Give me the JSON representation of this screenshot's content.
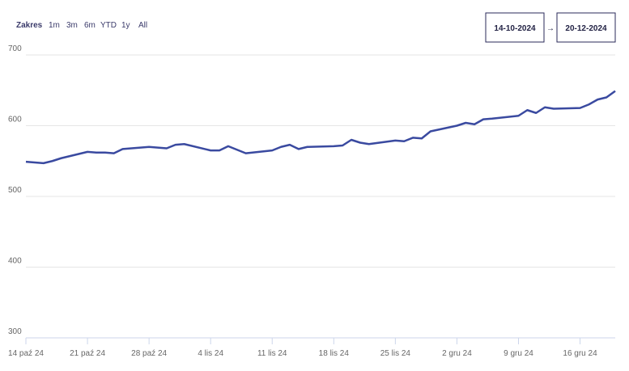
{
  "chart_data": {
    "type": "line",
    "range_selector": {
      "label": "Zakres",
      "buttons": [
        "1m",
        "3m",
        "6m",
        "YTD",
        "1y",
        "All"
      ]
    },
    "date_from": "14-10-2024",
    "date_separator": "→",
    "date_to": "20-12-2024",
    "x": [
      "2024-10-14",
      "2024-10-15",
      "2024-10-16",
      "2024-10-17",
      "2024-10-18",
      "2024-10-21",
      "2024-10-22",
      "2024-10-23",
      "2024-10-24",
      "2024-10-25",
      "2024-10-28",
      "2024-10-29",
      "2024-10-30",
      "2024-10-31",
      "2024-11-01",
      "2024-11-04",
      "2024-11-05",
      "2024-11-06",
      "2024-11-07",
      "2024-11-08",
      "2024-11-11",
      "2024-11-12",
      "2024-11-13",
      "2024-11-14",
      "2024-11-15",
      "2024-11-18",
      "2024-11-19",
      "2024-11-20",
      "2024-11-21",
      "2024-11-22",
      "2024-11-25",
      "2024-11-26",
      "2024-11-27",
      "2024-11-28",
      "2024-11-29",
      "2024-12-02",
      "2024-12-03",
      "2024-12-04",
      "2024-12-05",
      "2024-12-06",
      "2024-12-09",
      "2024-12-10",
      "2024-12-11",
      "2024-12-12",
      "2024-12-13",
      "2024-12-16",
      "2024-12-17",
      "2024-12-18",
      "2024-12-19",
      "2024-12-20"
    ],
    "series": [
      {
        "color": "#3a4aa0",
        "values": [
          549,
          548,
          547,
          550,
          554,
          563,
          562,
          562,
          561,
          567,
          570,
          569,
          568,
          573,
          574,
          565,
          565,
          571,
          566,
          561,
          565,
          570,
          573,
          567,
          570,
          571,
          572,
          580,
          576,
          574,
          579,
          578,
          583,
          582,
          592,
          600,
          604,
          602,
          609,
          610,
          614,
          622,
          618,
          626,
          624,
          625,
          630,
          637,
          640,
          649
        ]
      }
    ],
    "xlim": [
      "2024-10-14",
      "2024-12-20"
    ],
    "xticks": [
      {
        "value": "2024-10-14",
        "label": "14 paź 24"
      },
      {
        "value": "2024-10-21",
        "label": "21 paź 24"
      },
      {
        "value": "2024-10-28",
        "label": "28 paź 24"
      },
      {
        "value": "2024-11-04",
        "label": "4 lis 24"
      },
      {
        "value": "2024-11-11",
        "label": "11 lis 24"
      },
      {
        "value": "2024-11-18",
        "label": "18 lis 24"
      },
      {
        "value": "2024-11-25",
        "label": "25 lis 24"
      },
      {
        "value": "2024-12-02",
        "label": "2 gru 24"
      },
      {
        "value": "2024-12-09",
        "label": "9 gru 24"
      },
      {
        "value": "2024-12-16",
        "label": "16 gru 24"
      }
    ],
    "ylim": [
      300,
      700
    ],
    "yticks": [
      300,
      400,
      500,
      600,
      700
    ],
    "grid": true
  }
}
